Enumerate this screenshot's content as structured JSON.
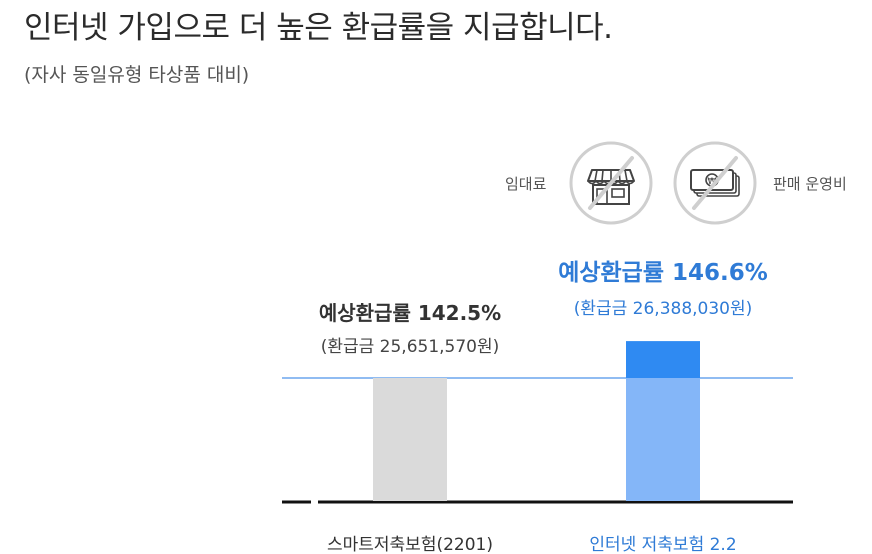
{
  "header": {
    "title": "인터넷 가입으로 더 높은 환급률을 지급합니다.",
    "subtitle": "(자사 동일유형 타상품 대비)"
  },
  "cost_badges": [
    {
      "label": "임대료",
      "icon": "store-icon"
    },
    {
      "label": "판매 운영비",
      "icon": "cash-icon"
    }
  ],
  "colors": {
    "gray_bar": "#dadada",
    "blue_light": "#84b6f8",
    "blue_top": "#2f8af2",
    "accent_text": "#2f7bd6",
    "reference_line": "#4d94ea"
  },
  "chart_data": {
    "type": "bar",
    "categories": [
      "스마트저축보험(2201)",
      "인터넷 저축보험 2.2"
    ],
    "values": [
      142.5,
      146.6
    ],
    "value_labels": [
      "예상환급률 142.5%",
      "예상환급률 146.6%"
    ],
    "refund_labels": [
      "(환급금 25,651,570원)",
      "(환급금 26,388,030원)"
    ],
    "refunds_won": [
      25651570,
      26388030
    ],
    "title": "",
    "xlabel": "",
    "ylabel": "",
    "grid": false,
    "legend": "none"
  }
}
